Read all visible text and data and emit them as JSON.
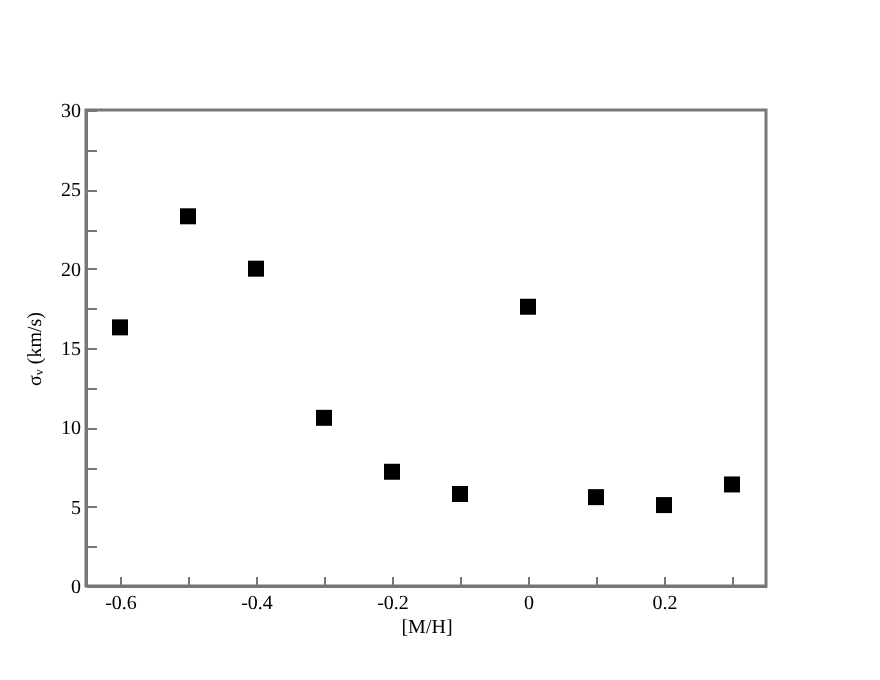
{
  "chart_data": {
    "type": "scatter",
    "xlabel": "[M/H]",
    "ylabel": "σᵥ (km/s)",
    "x": [
      -0.6,
      -0.5,
      -0.4,
      -0.3,
      -0.2,
      -0.1,
      0,
      0.1,
      0.2,
      0.3
    ],
    "series": [
      {
        "color": "#000000",
        "values": [
          16.3,
          23.3,
          20.0,
          10.6,
          7.2,
          5.8,
          17.6,
          5.6,
          5.1,
          6.4
        ]
      }
    ],
    "xlim": [
      -0.65,
      0.35
    ],
    "xticks": [
      -0.6,
      {
        "value": -0.5,
        "label": null
      },
      -0.4,
      {
        "value": -0.3,
        "label": null
      },
      -0.2,
      {
        "value": -0.1,
        "label": null
      },
      0,
      {
        "value": 0.1,
        "label": null
      },
      0.2,
      {
        "value": 0.3,
        "label": null
      }
    ],
    "ylim": [
      0,
      30
    ],
    "yticks": [
      0,
      {
        "value": 2.5,
        "label": null
      },
      5,
      {
        "value": 7.5,
        "label": null
      },
      10,
      {
        "value": 12.5,
        "label": null
      },
      15,
      {
        "value": 17.5,
        "label": null
      },
      20,
      {
        "value": 22.5,
        "label": null
      },
      25,
      {
        "value": 27.5,
        "label": null
      },
      30
    ],
    "marker": "square",
    "grid": false
  }
}
